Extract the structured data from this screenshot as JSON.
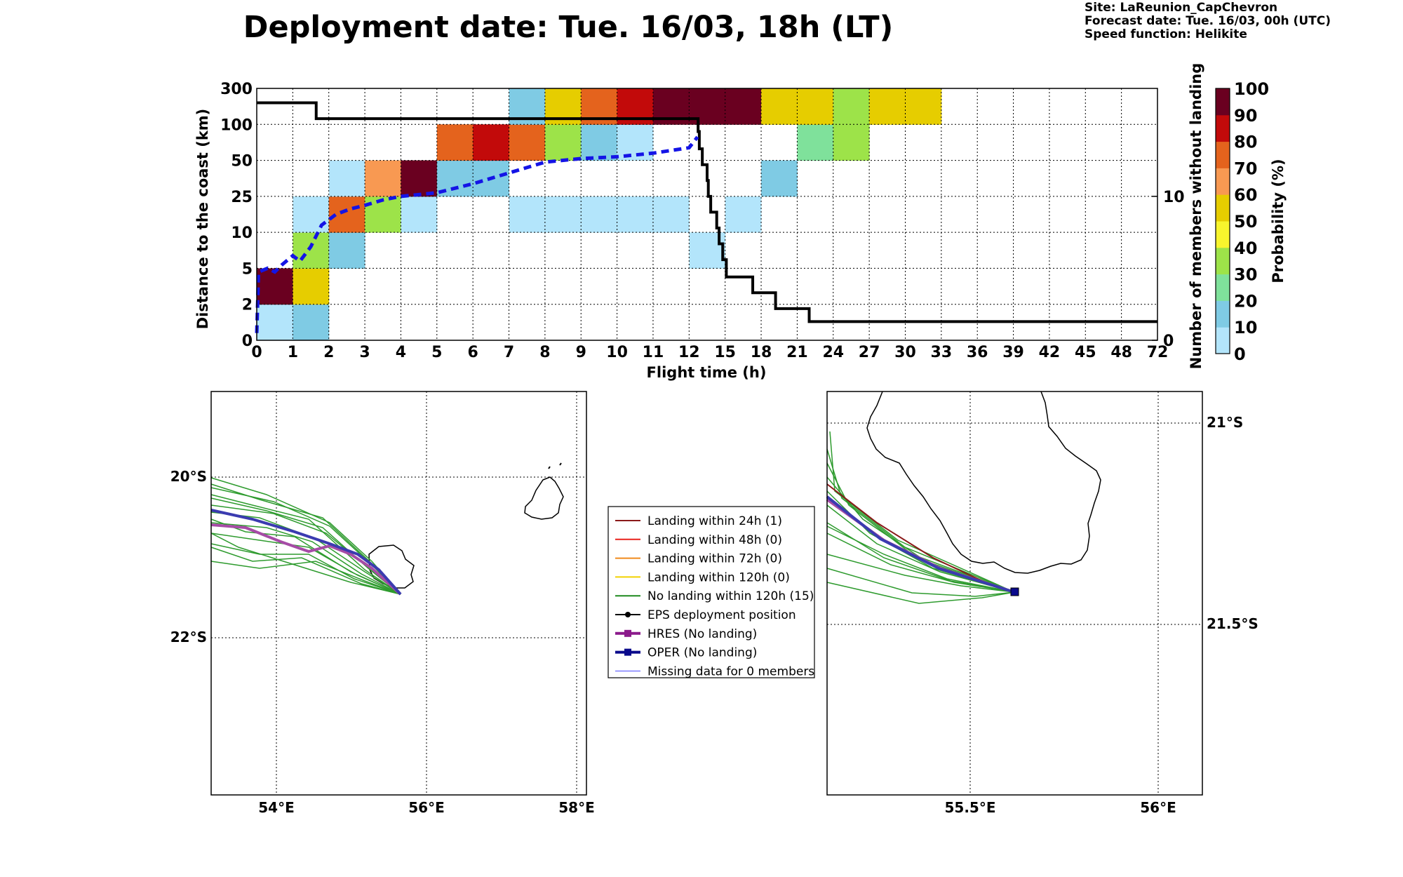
{
  "header": {
    "title": "Deployment date: Tue. 16/03, 18h (LT)",
    "site": "Site: LaReunion_CapChevron",
    "forecast": "Forecast date: Tue. 16/03, 00h (UTC)",
    "speed": "Speed function: Helikite"
  },
  "chart_data": [
    {
      "type": "heatmap",
      "xlabel": "Flight time (h)",
      "ylabel": "Distance to the coast (km)",
      "y2label": "Number of members without landing",
      "colorbar_label": "Probability (%)",
      "x_ticks": [
        "0",
        "1",
        "2",
        "3",
        "4",
        "5",
        "6",
        "7",
        "8",
        "9",
        "10",
        "11",
        "12",
        "15",
        "18",
        "21",
        "24",
        "27",
        "30",
        "33",
        "36",
        "39",
        "42",
        "45",
        "48",
        "72"
      ],
      "y_ticks": [
        "0",
        "2",
        "5",
        "10",
        "25",
        "50",
        "100",
        "300"
      ],
      "y2_ticks": [
        {
          "label": "0",
          "value": 0
        },
        {
          "label": "10",
          "value": 10
        }
      ],
      "y2_range": [
        0,
        17.5
      ],
      "colorbar": {
        "ticks": [
          "0",
          "10",
          "20",
          "30",
          "40",
          "50",
          "60",
          "70",
          "80",
          "90",
          "100"
        ],
        "colors": [
          "#b3e5fb",
          "#7fcbe4",
          "#7fe19b",
          "#9de349",
          "#f8f52d",
          "#e6cd00",
          "#f89952",
          "#e4631d",
          "#c20a0a",
          "#6a0020"
        ]
      },
      "cells": [
        {
          "x": 0,
          "y": 0,
          "c": "#b3e5fb"
        },
        {
          "x": 1,
          "y": 0,
          "c": "#7fcbe4"
        },
        {
          "x": 0,
          "y": 1,
          "c": "#6a0020"
        },
        {
          "x": 1,
          "y": 1,
          "c": "#e6cd00"
        },
        {
          "x": 1,
          "y": 2,
          "c": "#9de349"
        },
        {
          "x": 2,
          "y": 2,
          "c": "#7fcbe4"
        },
        {
          "x": 12,
          "y": 2,
          "c": "#b3e5fb"
        },
        {
          "x": 1,
          "y": 3,
          "c": "#b3e5fb"
        },
        {
          "x": 2,
          "y": 3,
          "c": "#e4631d"
        },
        {
          "x": 3,
          "y": 3,
          "c": "#9de349"
        },
        {
          "x": 4,
          "y": 3,
          "c": "#b3e5fb"
        },
        {
          "x": 7,
          "y": 3,
          "c": "#b3e5fb"
        },
        {
          "x": 8,
          "y": 3,
          "c": "#b3e5fb"
        },
        {
          "x": 9,
          "y": 3,
          "c": "#b3e5fb"
        },
        {
          "x": 10,
          "y": 3,
          "c": "#b3e5fb"
        },
        {
          "x": 11,
          "y": 3,
          "c": "#b3e5fb"
        },
        {
          "x": 13,
          "y": 3,
          "c": "#b3e5fb"
        },
        {
          "x": 2,
          "y": 4,
          "c": "#b3e5fb"
        },
        {
          "x": 3,
          "y": 4,
          "c": "#f89952"
        },
        {
          "x": 4,
          "y": 4,
          "c": "#6a0020"
        },
        {
          "x": 5,
          "y": 4,
          "c": "#7fcbe4"
        },
        {
          "x": 6,
          "y": 4,
          "c": "#7fcbe4"
        },
        {
          "x": 14,
          "y": 4,
          "c": "#7fcbe4"
        },
        {
          "x": 5,
          "y": 5,
          "c": "#e4631d"
        },
        {
          "x": 6,
          "y": 5,
          "c": "#c20a0a"
        },
        {
          "x": 7,
          "y": 5,
          "c": "#e4631d"
        },
        {
          "x": 8,
          "y": 5,
          "c": "#9de349"
        },
        {
          "x": 9,
          "y": 5,
          "c": "#7fcbe4"
        },
        {
          "x": 10,
          "y": 5,
          "c": "#b3e5fb"
        },
        {
          "x": 15,
          "y": 5,
          "c": "#7fe19b"
        },
        {
          "x": 16,
          "y": 5,
          "c": "#9de349"
        },
        {
          "x": 7,
          "y": 6,
          "c": "#7fcbe4"
        },
        {
          "x": 8,
          "y": 6,
          "c": "#e6cd00"
        },
        {
          "x": 9,
          "y": 6,
          "c": "#e4631d"
        },
        {
          "x": 10,
          "y": 6,
          "c": "#c20a0a"
        },
        {
          "x": 11,
          "y": 6,
          "c": "#6a0020"
        },
        {
          "x": 12,
          "y": 6,
          "c": "#6a0020"
        },
        {
          "x": 13,
          "y": 6,
          "c": "#6a0020"
        },
        {
          "x": 14,
          "y": 6,
          "c": "#e6cd00"
        },
        {
          "x": 15,
          "y": 6,
          "c": "#e6cd00"
        },
        {
          "x": 16,
          "y": 6,
          "c": "#9de349"
        },
        {
          "x": 17,
          "y": 6,
          "c": "#e6cd00"
        },
        {
          "x": 18,
          "y": 6,
          "c": "#e6cd00"
        }
      ],
      "members_without_landing": [
        [
          0,
          16.5
        ],
        [
          1.6,
          16.5
        ],
        [
          1.65,
          15.4
        ],
        [
          12.7,
          15.4
        ],
        [
          12.75,
          14.5
        ],
        [
          12.85,
          13.3
        ],
        [
          13.1,
          12.2
        ],
        [
          13.5,
          11.1
        ],
        [
          13.6,
          10
        ],
        [
          13.8,
          8.9
        ],
        [
          14.3,
          7.8
        ],
        [
          14.5,
          6.7
        ],
        [
          14.8,
          5.6
        ],
        [
          15.1,
          4.4
        ],
        [
          17.3,
          3.3
        ],
        [
          19.2,
          2.2
        ],
        [
          22.0,
          1.3
        ],
        [
          72,
          1.3
        ]
      ],
      "blue_dashed_line": [
        [
          0,
          0.2
        ],
        [
          0.05,
          1.9
        ],
        [
          0.3,
          2.0
        ],
        [
          0.5,
          1.9
        ],
        [
          0.7,
          2.1
        ],
        [
          1.0,
          2.35
        ],
        [
          1.2,
          2.2
        ],
        [
          1.5,
          2.6
        ],
        [
          1.8,
          3.2
        ],
        [
          2.2,
          3.5
        ],
        [
          2.6,
          3.65
        ],
        [
          3.0,
          3.75
        ],
        [
          3.5,
          3.9
        ],
        [
          4.0,
          4.0
        ],
        [
          5.0,
          4.1
        ],
        [
          6.0,
          4.35
        ],
        [
          7.0,
          4.65
        ],
        [
          8.0,
          4.95
        ],
        [
          9.0,
          5.05
        ],
        [
          10.0,
          5.1
        ],
        [
          11.0,
          5.2
        ],
        [
          12.0,
          5.35
        ],
        [
          12.7,
          5.65
        ]
      ]
    }
  ],
  "legend": [
    {
      "label": "Landing within 24h (1)",
      "color": "#8b1a1a",
      "marker": "none",
      "width": 2
    },
    {
      "label": "Landing within 48h (0)",
      "color": "#e8221b",
      "marker": "none",
      "width": 2
    },
    {
      "label": "Landing within 72h (0)",
      "color": "#f08a1c",
      "marker": "none",
      "width": 2
    },
    {
      "label": "Landing within 120h (0)",
      "color": "#f2d200",
      "marker": "none",
      "width": 2
    },
    {
      "label": "No landing within 120h (15)",
      "color": "#1f8a1f",
      "marker": "none",
      "width": 2
    },
    {
      "label": "EPS deployment position",
      "color": "#000000",
      "marker": "circle",
      "width": 2
    },
    {
      "label": "HRES (No landing)",
      "color": "#8b1a8b",
      "marker": "square",
      "width": 4
    },
    {
      "label": "OPER (No landing)",
      "color": "#0a0a8c",
      "marker": "square",
      "width": 4
    },
    {
      "label": "Missing data for 0 members",
      "color": "#4444ff",
      "marker": "none",
      "width": 1
    }
  ],
  "maps": {
    "left": {
      "x_ticks": [
        "54°E",
        "56°E",
        "58°E"
      ],
      "y_ticks": [
        "20°S",
        "22°S"
      ]
    },
    "right": {
      "x_ticks": [
        "55.5°E",
        "56°E"
      ],
      "y_ticks": [
        "21°S",
        "21.5°S"
      ]
    }
  },
  "colors": {
    "ensemble": "#2e9b2e",
    "hres": "#a64ca6",
    "oper": "#3b3bb0",
    "landing": "#8b1a1a"
  }
}
